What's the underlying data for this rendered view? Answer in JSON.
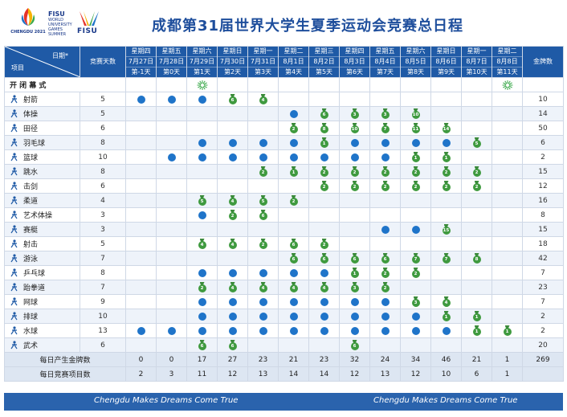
{
  "header": {
    "title": "成都第31届世界大学生夏季运动会竞赛总日程",
    "logo_caption": "CHENGDU 2021",
    "fisu_small": "FISU",
    "fisu_lines": [
      "WORLD",
      "UNIVERSITY",
      "GAMES",
      "SUMMER"
    ],
    "fisu_word": "FISU"
  },
  "table": {
    "corner_top": "日期*",
    "corner_bottom": "项目",
    "events_col": "竞赛天数",
    "medals_col": "金牌数",
    "days": [
      {
        "weekday": "星期四",
        "date": "7月27日",
        "label": "第-1天"
      },
      {
        "weekday": "星期五",
        "date": "7月28日",
        "label": "第0天"
      },
      {
        "weekday": "星期六",
        "date": "7月29日",
        "label": "第1天"
      },
      {
        "weekday": "星期日",
        "date": "7月30日",
        "label": "第2天"
      },
      {
        "weekday": "星期一",
        "date": "7月31日",
        "label": "第3天"
      },
      {
        "weekday": "星期二",
        "date": "8月1日",
        "label": "第4天"
      },
      {
        "weekday": "星期三",
        "date": "8月2日",
        "label": "第5天"
      },
      {
        "weekday": "星期四",
        "date": "8月3日",
        "label": "第6天"
      },
      {
        "weekday": "星期五",
        "date": "8月4日",
        "label": "第7天"
      },
      {
        "weekday": "星期六",
        "date": "8月5日",
        "label": "第8天"
      },
      {
        "weekday": "星期日",
        "date": "8月6日",
        "label": "第9天"
      },
      {
        "weekday": "星期一",
        "date": "8月7日",
        "label": "第10天"
      },
      {
        "weekday": "星期二",
        "date": "8月8日",
        "label": "第11天"
      }
    ],
    "ceremony": {
      "name": "开 闭 幕 式",
      "cells": [
        "",
        "",
        "F",
        "",
        "",
        "",
        "",
        "",
        "",
        "",
        "",
        "",
        "F"
      ]
    },
    "sports": [
      {
        "name": "射箭",
        "days": "5",
        "cells": [
          "D",
          "D",
          "D",
          "M6",
          "M4",
          "",
          "",
          "",
          "",
          "",
          "",
          "",
          ""
        ],
        "gold": "10"
      },
      {
        "name": "体操",
        "days": "5",
        "cells": [
          "",
          "",
          "",
          "",
          "",
          "D",
          "M6",
          "M3",
          "M3",
          "M10",
          "",
          "",
          ""
        ],
        "gold": "14"
      },
      {
        "name": "田径",
        "days": "6",
        "cells": [
          "",
          "",
          "",
          "",
          "",
          "M2",
          "M8",
          "M10",
          "M7",
          "M11",
          "M14",
          "",
          ""
        ],
        "gold": "50"
      },
      {
        "name": "羽毛球",
        "days": "8",
        "cells": [
          "",
          "",
          "D",
          "D",
          "D",
          "D",
          "M1",
          "D",
          "D",
          "D",
          "D",
          "M5",
          ""
        ],
        "gold": "6"
      },
      {
        "name": "篮球",
        "days": "10",
        "cells": [
          "",
          "D",
          "D",
          "D",
          "D",
          "D",
          "D",
          "D",
          "D",
          "M1",
          "M1",
          "",
          ""
        ],
        "gold": "2"
      },
      {
        "name": "跳水",
        "days": "8",
        "cells": [
          "",
          "",
          "",
          "",
          "M2",
          "M1",
          "M2",
          "M2",
          "M2",
          "M2",
          "M2",
          "M2",
          ""
        ],
        "gold": "15"
      },
      {
        "name": "击剑",
        "days": "6",
        "cells": [
          "",
          "",
          "",
          "",
          "",
          "",
          "M2",
          "M2",
          "M2",
          "M2",
          "M2",
          "M2",
          ""
        ],
        "gold": "12"
      },
      {
        "name": "柔道",
        "days": "4",
        "cells": [
          "",
          "",
          "M5",
          "M4",
          "M5",
          "M2",
          "",
          "",
          "",
          "",
          "",
          "",
          ""
        ],
        "gold": "16"
      },
      {
        "name": "艺术体操",
        "days": "3",
        "cells": [
          "",
          "",
          "D",
          "M2",
          "M6",
          "",
          "",
          "",
          "",
          "",
          "",
          "",
          ""
        ],
        "gold": "8"
      },
      {
        "name": "赛艇",
        "days": "3",
        "cells": [
          "",
          "",
          "",
          "",
          "",
          "",
          "",
          "",
          "D",
          "D",
          "M15",
          "",
          ""
        ],
        "gold": "15"
      },
      {
        "name": "射击",
        "days": "5",
        "cells": [
          "",
          "",
          "M4",
          "M4",
          "M2",
          "M6",
          "M2",
          "",
          "",
          "",
          "",
          "",
          ""
        ],
        "gold": "18"
      },
      {
        "name": "游泳",
        "days": "7",
        "cells": [
          "",
          "",
          "",
          "",
          "",
          "M6",
          "M6",
          "M6",
          "M6",
          "M7",
          "M7",
          "M8",
          ""
        ],
        "gold": "42"
      },
      {
        "name": "乒乓球",
        "days": "8",
        "cells": [
          "",
          "",
          "D",
          "D",
          "D",
          "D",
          "D",
          "M1",
          "M2",
          "M2",
          "",
          "",
          ""
        ],
        "gold": "7"
      },
      {
        "name": "跆拳道",
        "days": "7",
        "cells": [
          "",
          "",
          "M2",
          "M4",
          "M4",
          "M4",
          "M4",
          "M3",
          "M2",
          "",
          "",
          "",
          ""
        ],
        "gold": "23"
      },
      {
        "name": "网球",
        "days": "9",
        "cells": [
          "",
          "",
          "D",
          "D",
          "D",
          "D",
          "D",
          "D",
          "D",
          "M3",
          "M4",
          "",
          ""
        ],
        "gold": "7"
      },
      {
        "name": "排球",
        "days": "10",
        "cells": [
          "",
          "",
          "D",
          "D",
          "D",
          "D",
          "D",
          "D",
          "D",
          "D",
          "M1",
          "M1",
          ""
        ],
        "gold": "2"
      },
      {
        "name": "水球",
        "days": "13",
        "cells": [
          "D",
          "D",
          "D",
          "D",
          "D",
          "D",
          "D",
          "D",
          "D",
          "D",
          "D",
          "M1",
          "M1"
        ],
        "gold": "2"
      },
      {
        "name": "武术",
        "days": "6",
        "cells": [
          "",
          "",
          "M6",
          "M6",
          "",
          "",
          "",
          "M6",
          "",
          "",
          "",
          "",
          ""
        ],
        "gold": "20"
      }
    ],
    "daily_gold_label": "每日产生金牌数",
    "daily_gold": [
      "0",
      "0",
      "17",
      "27",
      "23",
      "21",
      "23",
      "32",
      "24",
      "34",
      "46",
      "21",
      "1"
    ],
    "daily_gold_total": "269",
    "daily_events_label": "每日竞赛项目数",
    "daily_events": [
      "2",
      "3",
      "11",
      "12",
      "13",
      "14",
      "14",
      "12",
      "13",
      "12",
      "10",
      "6",
      "1"
    ]
  },
  "footer": {
    "slogan_left": "Chengdu Makes Dreams Come True",
    "slogan_right": "Chengdu Makes Dreams Come True"
  },
  "colors": {
    "header_blue": "#1f5aa6",
    "dot_blue": "#1f74c9",
    "medal_green": "#3f9a3f",
    "firework_green": "#3aa84a"
  }
}
